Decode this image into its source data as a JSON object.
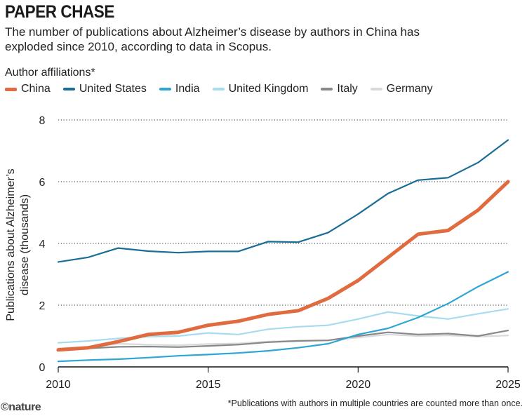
{
  "title": "PAPER CHASE",
  "subtitle": "The number of publications about Alzheimer’s disease by authors in China has exploded since 2010, according to data in Scopus.",
  "footnote": "*Publications with authors in multiple countries are counted more than once.",
  "logo": "©nature",
  "chart_data": {
    "type": "line",
    "legend_title": "Author affiliations*",
    "legend_position": "top",
    "ylabel_line1": "Publications about Alzheimer’s",
    "ylabel_line2": "disease (thousands)",
    "xlim": [
      2010,
      2025
    ],
    "ylim": [
      0,
      8
    ],
    "x_ticks": [
      "2010",
      "2015",
      "2020",
      "2025"
    ],
    "y_ticks": [
      "0",
      "2",
      "4",
      "6",
      "8"
    ],
    "grid": "horizontal dotted",
    "x": [
      2010,
      2011,
      2012,
      2013,
      2014,
      2015,
      2016,
      2017,
      2018,
      2019,
      2020,
      2021,
      2022,
      2023,
      2024,
      2025
    ],
    "series": [
      {
        "name": "Germany",
        "color": "#d9d9d9",
        "width": 2.2,
        "values": [
          0.6,
          0.65,
          0.75,
          0.72,
          0.7,
          0.74,
          0.76,
          0.82,
          0.85,
          0.86,
          0.95,
          1.05,
          1.0,
          1.02,
          0.98,
          1.02
        ]
      },
      {
        "name": "Italy",
        "color": "#86888a",
        "width": 2.2,
        "values": [
          0.58,
          0.6,
          0.65,
          0.66,
          0.64,
          0.68,
          0.72,
          0.8,
          0.84,
          0.86,
          1.0,
          1.12,
          1.05,
          1.08,
          1.0,
          1.18
        ]
      },
      {
        "name": "United Kingdom",
        "color": "#a6dcef",
        "width": 2.2,
        "values": [
          0.78,
          0.84,
          0.92,
          0.98,
          1.0,
          1.1,
          1.05,
          1.22,
          1.3,
          1.35,
          1.55,
          1.78,
          1.65,
          1.55,
          1.72,
          1.88
        ]
      },
      {
        "name": "India",
        "color": "#2ea6d3",
        "width": 2.2,
        "values": [
          0.18,
          0.22,
          0.25,
          0.3,
          0.36,
          0.4,
          0.45,
          0.52,
          0.62,
          0.75,
          1.05,
          1.25,
          1.6,
          2.05,
          2.6,
          3.08
        ]
      },
      {
        "name": "United States",
        "color": "#1a6d96",
        "width": 2.2,
        "values": [
          3.4,
          3.55,
          3.85,
          3.75,
          3.7,
          3.74,
          3.74,
          4.06,
          4.04,
          4.35,
          4.95,
          5.62,
          6.05,
          6.13,
          6.62,
          7.35
        ]
      },
      {
        "name": "China",
        "color": "#e06b3f",
        "width": 5,
        "values": [
          0.55,
          0.62,
          0.82,
          1.05,
          1.12,
          1.35,
          1.48,
          1.7,
          1.82,
          2.22,
          2.8,
          3.55,
          4.3,
          4.42,
          5.08,
          6.0
        ]
      }
    ],
    "legend_order": [
      "China",
      "United States",
      "India",
      "United Kingdom",
      "Italy",
      "Germany"
    ]
  }
}
